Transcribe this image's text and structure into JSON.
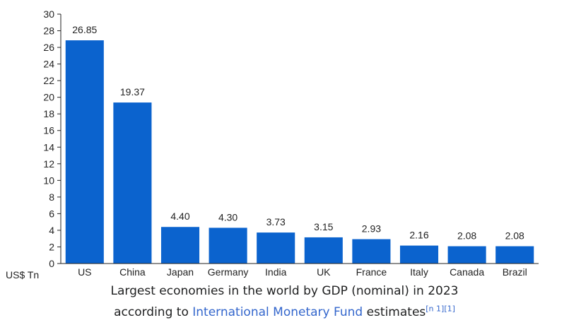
{
  "chart_data": {
    "type": "bar",
    "categories": [
      "US",
      "China",
      "Japan",
      "Germany",
      "India",
      "UK",
      "France",
      "Italy",
      "Canada",
      "Brazil"
    ],
    "values": [
      26.85,
      19.37,
      4.4,
      4.3,
      3.73,
      3.15,
      2.93,
      2.16,
      2.08,
      2.08
    ],
    "value_labels": [
      "26.85",
      "19.37",
      "4.40",
      "4.30",
      "3.73",
      "3.15",
      "2.93",
      "2.16",
      "2.08",
      "2.08"
    ],
    "ylabel": "US$ Tn",
    "ylim": [
      0,
      30
    ],
    "yticks": [
      0,
      2,
      4,
      6,
      8,
      10,
      12,
      14,
      16,
      18,
      20,
      22,
      24,
      26,
      28,
      30
    ],
    "grid": false,
    "bar_color": "#0b63ce"
  },
  "caption": {
    "line1": "Largest economies in the world by GDP (nominal) in 2023",
    "line2_prefix": "according to ",
    "line2_link": "International Monetary Fund",
    "line2_suffix": " estimates",
    "refs": "[n 1][1]"
  }
}
